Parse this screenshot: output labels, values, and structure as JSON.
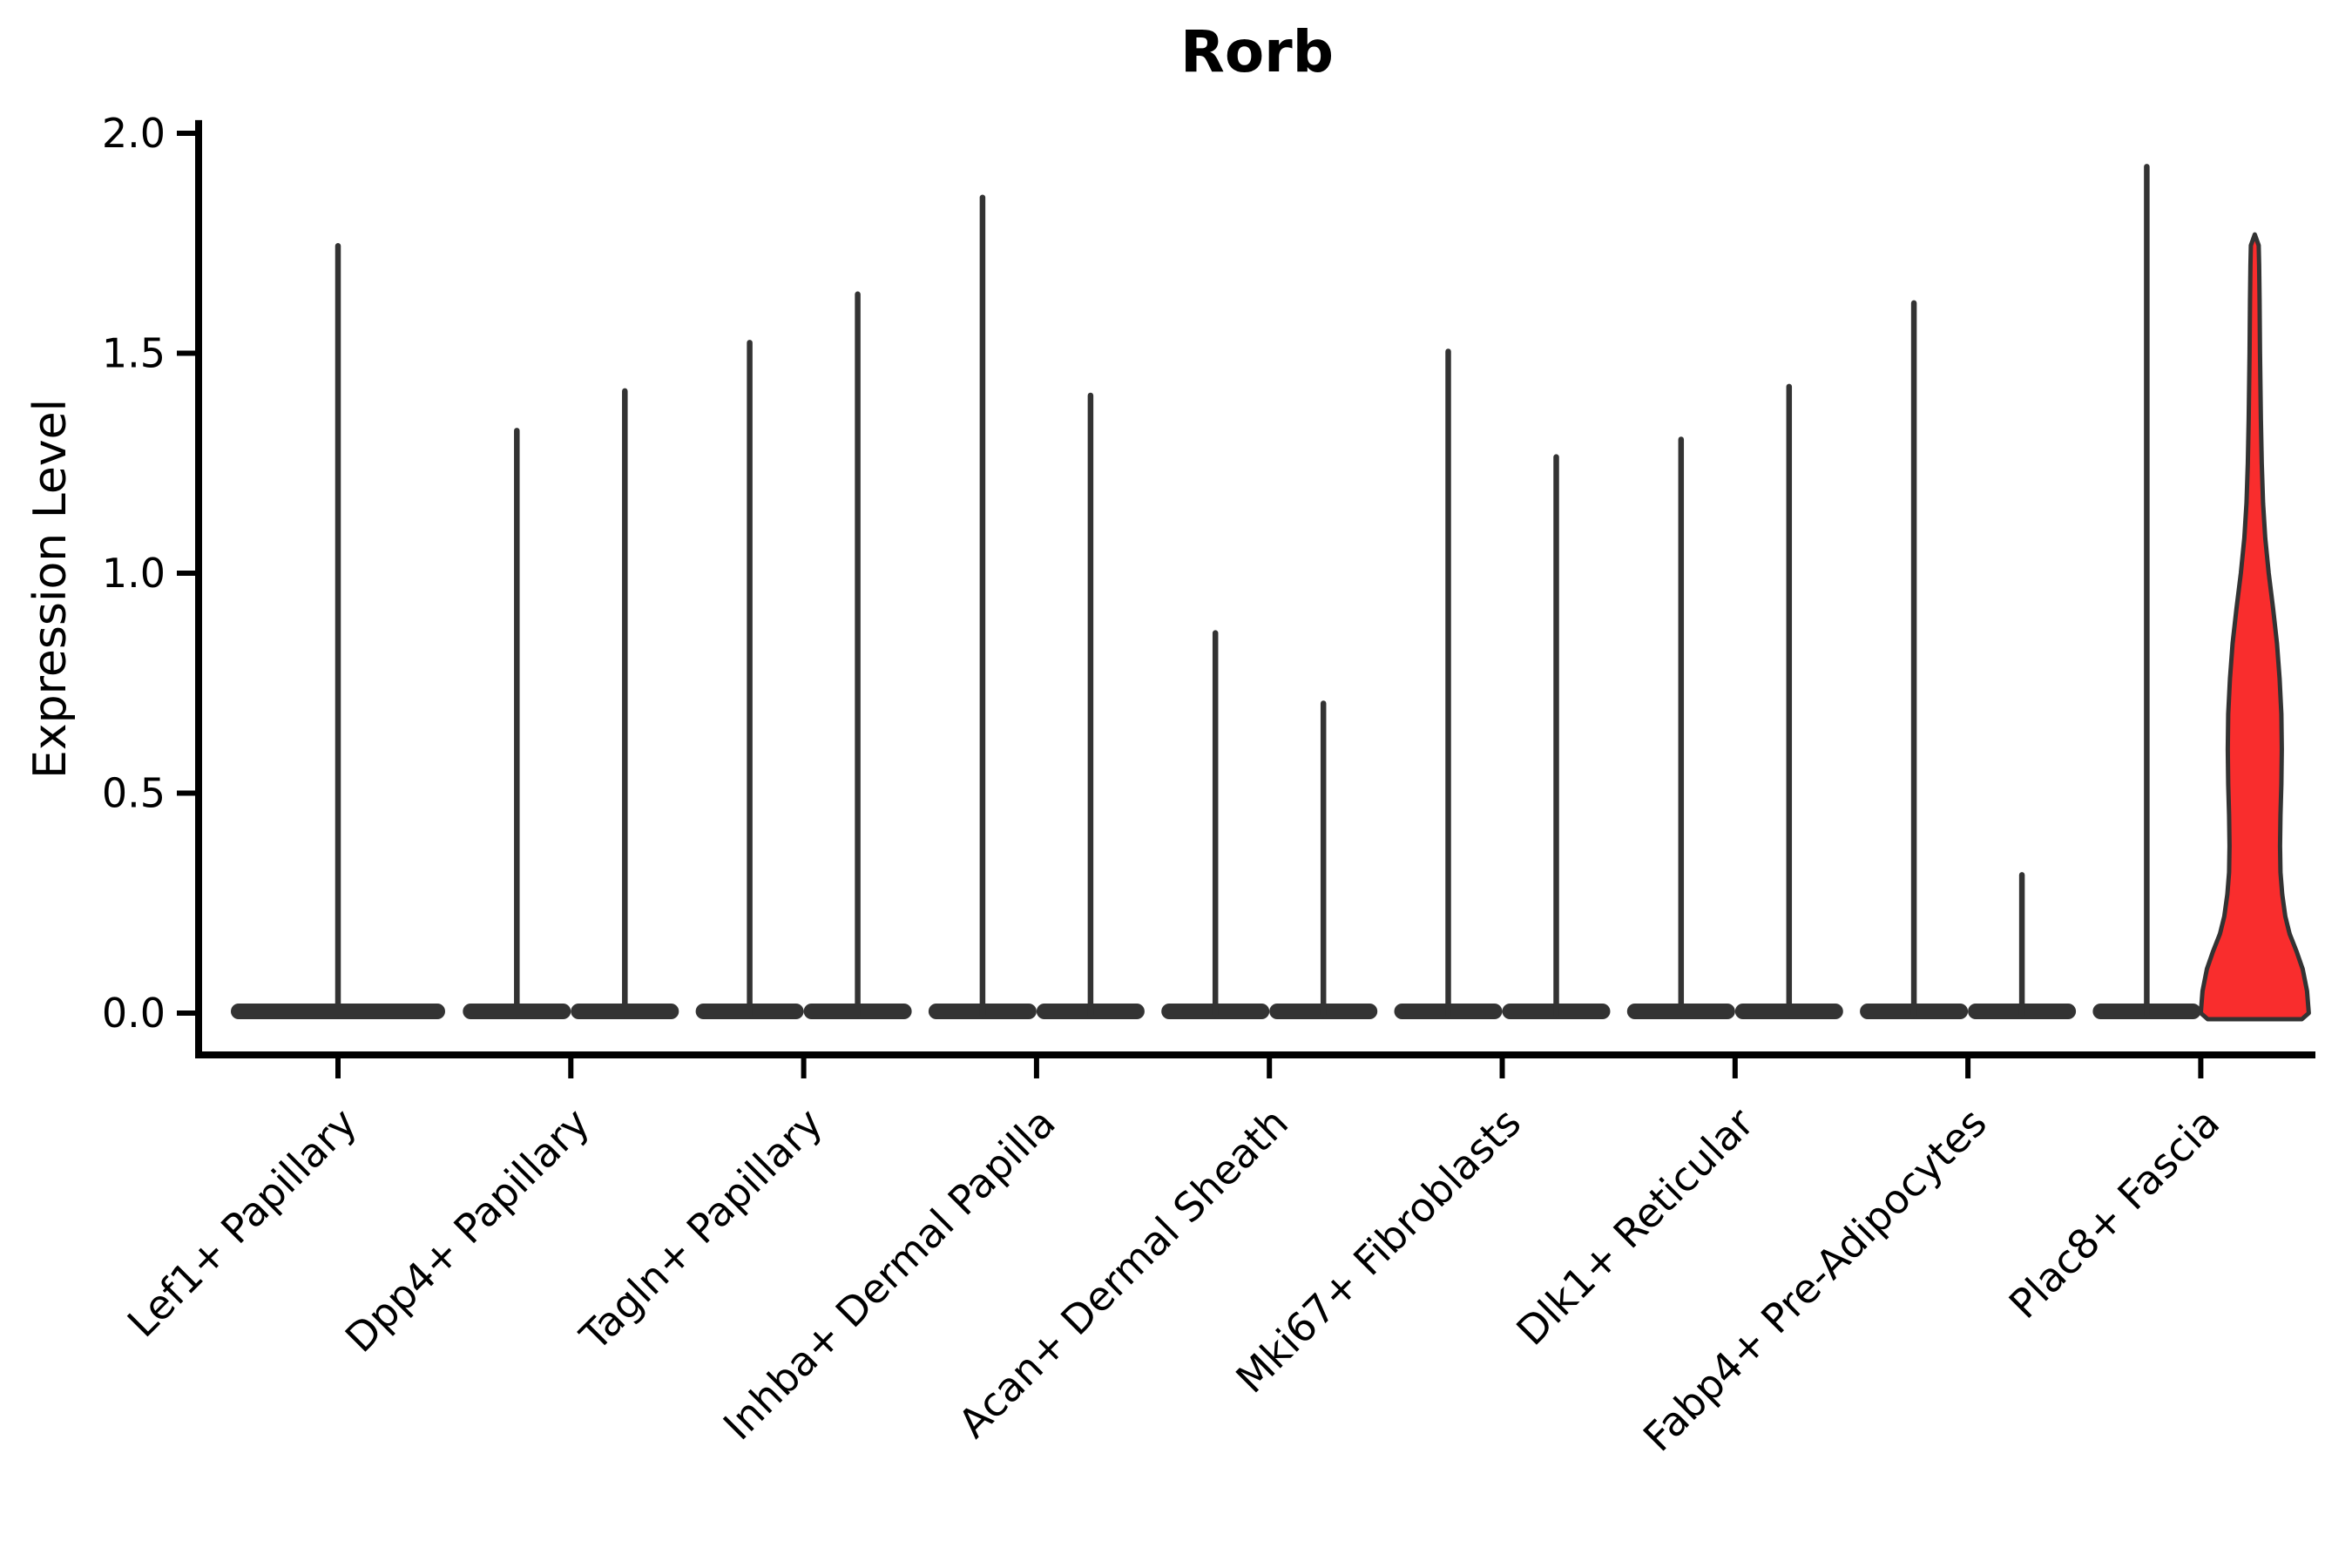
{
  "chart_data": {
    "type": "violin",
    "title": "Rorb",
    "ylabel": "Expression Level",
    "xlabel": "",
    "grid": false,
    "legend": null,
    "ylim": [
      -0.095,
      2.03
    ],
    "yticks": [
      {
        "value": 0.0,
        "label": "0.0"
      },
      {
        "value": 0.5,
        "label": "0.5"
      },
      {
        "value": 1.0,
        "label": "1.0"
      },
      {
        "value": 1.5,
        "label": "1.5"
      },
      {
        "value": 2.0,
        "label": "2.0"
      }
    ],
    "categories": [
      "Lef1+ Papillary",
      "Dpp4+ Papillary",
      "Tagln+ Papillary",
      "Inhba+ Dermal Papilla",
      "Acan+ Dermal Sheath",
      "Mki67+ Fibroblasts",
      "Dlk1+ Reticular",
      "Fabp4+ Pre-Adipocytes",
      "Plac8+ Fascia"
    ],
    "groups": [
      {
        "category": "Lef1+ Papillary",
        "violins": [
          {
            "slot": "center",
            "max": 1.75,
            "style": "collapsed"
          }
        ]
      },
      {
        "category": "Dpp4+ Papillary",
        "violins": [
          {
            "slot": "left",
            "max": 1.33,
            "style": "collapsed"
          },
          {
            "slot": "right",
            "max": 1.42,
            "style": "collapsed"
          }
        ]
      },
      {
        "category": "Tagln+ Papillary",
        "violins": [
          {
            "slot": "left",
            "max": 1.53,
            "style": "collapsed"
          },
          {
            "slot": "right",
            "max": 1.64,
            "style": "collapsed"
          }
        ]
      },
      {
        "category": "Inhba+ Dermal Papilla",
        "violins": [
          {
            "slot": "left",
            "max": 1.86,
            "style": "collapsed"
          },
          {
            "slot": "right",
            "max": 1.41,
            "style": "collapsed"
          }
        ]
      },
      {
        "category": "Acan+ Dermal Sheath",
        "violins": [
          {
            "slot": "left",
            "max": 0.87,
            "style": "collapsed"
          },
          {
            "slot": "right",
            "max": 0.71,
            "style": "collapsed"
          }
        ]
      },
      {
        "category": "Mki67+ Fibroblasts",
        "violins": [
          {
            "slot": "left",
            "max": 1.51,
            "style": "collapsed"
          },
          {
            "slot": "right",
            "max": 1.27,
            "style": "collapsed"
          }
        ]
      },
      {
        "category": "Dlk1+ Reticular",
        "violins": [
          {
            "slot": "left",
            "max": 1.31,
            "style": "collapsed"
          },
          {
            "slot": "right",
            "max": 1.43,
            "style": "collapsed"
          }
        ]
      },
      {
        "category": "Fabp4+ Pre-Adipocytes",
        "violins": [
          {
            "slot": "left",
            "max": 1.62,
            "style": "collapsed"
          },
          {
            "slot": "right",
            "max": 0.32,
            "style": "collapsed"
          }
        ]
      },
      {
        "category": "Plac8+ Fascia",
        "violins": [
          {
            "slot": "left",
            "max": 1.93,
            "style": "collapsed"
          },
          {
            "slot": "right",
            "max": 1.77,
            "style": "shaped",
            "highlighted": true,
            "profile": [
              [
                0.0,
                62
              ],
              [
                0.05,
                60
              ],
              [
                0.1,
                55
              ],
              [
                0.14,
                48
              ],
              [
                0.18,
                40
              ],
              [
                0.22,
                35
              ],
              [
                0.27,
                31.5
              ],
              [
                0.32,
                29.5
              ],
              [
                0.38,
                29
              ],
              [
                0.45,
                29.5
              ],
              [
                0.52,
                30.5
              ],
              [
                0.6,
                31
              ],
              [
                0.68,
                30.5
              ],
              [
                0.76,
                28.5
              ],
              [
                0.84,
                25.5
              ],
              [
                0.92,
                21
              ],
              [
                1.0,
                16
              ],
              [
                1.08,
                12
              ],
              [
                1.16,
                9.5
              ],
              [
                1.25,
                8
              ],
              [
                1.35,
                7
              ],
              [
                1.5,
                6
              ],
              [
                1.62,
                5.5
              ],
              [
                1.7,
                5
              ],
              [
                1.745,
                4.5
              ],
              [
                1.77,
                0
              ]
            ]
          }
        ]
      }
    ],
    "colors": {
      "violin_edge": "#333333",
      "highlight_fill": "#f92d2d",
      "axis": "#000000",
      "background": "#ffffff"
    }
  }
}
